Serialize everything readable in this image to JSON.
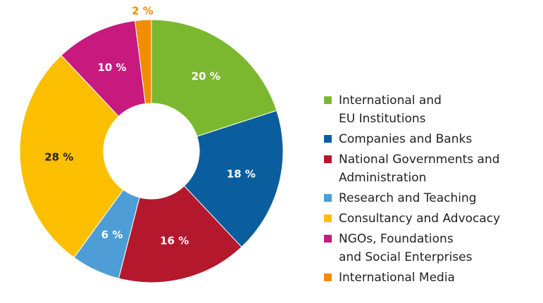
{
  "chart_data": {
    "type": "pie",
    "variant": "donut",
    "legend_position": "right",
    "slices": [
      {
        "label_lines": [
          "International and",
          "EU Institutions"
        ],
        "value": 20,
        "value_label": "20 %",
        "color": "#7cb82f",
        "label_color": "#ffffff"
      },
      {
        "label_lines": [
          "Companies and Banks"
        ],
        "value": 18,
        "value_label": "18 %",
        "color": "#0b5e9e",
        "label_color": "#ffffff"
      },
      {
        "label_lines": [
          "National Governments and",
          "Administration"
        ],
        "value": 16,
        "value_label": "16 %",
        "color": "#b3182d",
        "label_color": "#ffffff"
      },
      {
        "label_lines": [
          "Research and Teaching"
        ],
        "value": 6,
        "value_label": "6 %",
        "color": "#4e9dd6",
        "label_color": "#ffffff"
      },
      {
        "label_lines": [
          "Consultancy and Advocacy"
        ],
        "value": 28,
        "value_label": "28 %",
        "color": "#fbbf00",
        "label_color": "#222222"
      },
      {
        "label_lines": [
          "NGOs, Foundations",
          "and Social Enterprises"
        ],
        "value": 10,
        "value_label": "10 %",
        "color": "#c8197f",
        "label_color": "#ffffff"
      },
      {
        "label_lines": [
          "International Media"
        ],
        "value": 2,
        "value_label": "2 %",
        "color": "#f28c00",
        "label_color": "#f28c00"
      }
    ]
  }
}
